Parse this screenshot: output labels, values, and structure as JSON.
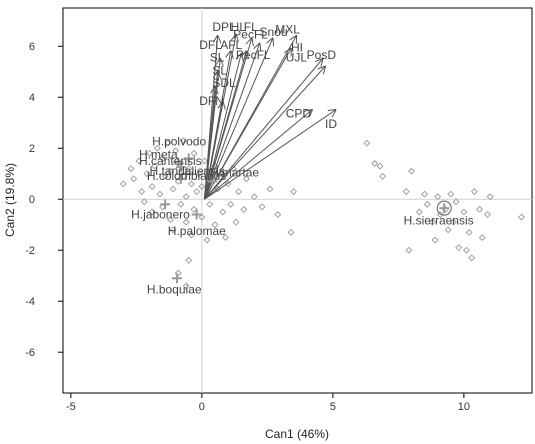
{
  "chart_data": {
    "type": "scatter",
    "xlabel": "Can1 (46%)",
    "ylabel": "Can2 (19.8%)",
    "xlim": [
      -5.3,
      12.6
    ],
    "ylim": [
      -7.6,
      7.5
    ],
    "xticks": [
      -5,
      0,
      5,
      10
    ],
    "yticks": [
      -6,
      -4,
      -2,
      0,
      2,
      4,
      6
    ],
    "grid": false,
    "colors": {
      "points": "#a0a0a0",
      "centroid": "#999999",
      "arrows": "#555555",
      "labels": "#444444",
      "frame": "#000000",
      "zero_lines": "#d0d0d0"
    },
    "groups": [
      {
        "name": "H.polvodo",
        "centroid": [
          -0.5,
          1.6
        ],
        "label_at": [
          -1.9,
          2.1
        ]
      },
      {
        "name": "H.meta",
        "centroid": [
          -0.9,
          1.45
        ],
        "label_at": [
          -2.4,
          1.6
        ]
      },
      {
        "name": "H.cantensis",
        "centroid": [
          -0.8,
          1.25
        ],
        "label_at": [
          -2.4,
          1.35
        ]
      },
      {
        "name": "H.tandaliensis",
        "centroid": [
          -0.6,
          1.0
        ],
        "label_at": [
          -2.0,
          0.95
        ]
      },
      {
        "name": "H.colombianus",
        "centroid": [
          -0.8,
          0.8
        ],
        "label_at": [
          -2.1,
          0.75
        ]
      },
      {
        "name": "H.martae",
        "centroid": [
          0.4,
          0.7
        ],
        "label_at": [
          0.3,
          0.9
        ]
      },
      {
        "name": "H.jabonero",
        "centroid": [
          -1.4,
          -0.2
        ],
        "label_at": [
          -2.7,
          -0.75
        ]
      },
      {
        "name": "H.palomae",
        "centroid": [
          -0.2,
          -0.6
        ],
        "label_at": [
          -1.3,
          -1.4
        ]
      },
      {
        "name": "H.boquiae",
        "centroid": [
          -0.95,
          -3.1
        ],
        "label_at": [
          -2.1,
          -3.7
        ]
      },
      {
        "name": "H.sierraensis",
        "centroid": [
          9.25,
          -0.35
        ],
        "label_at": [
          7.7,
          -1.0
        ]
      }
    ],
    "points": [
      [
        -3.0,
        0.6
      ],
      [
        -2.7,
        1.2
      ],
      [
        -2.6,
        0.8
      ],
      [
        -2.4,
        1.5
      ],
      [
        -2.3,
        0.3
      ],
      [
        -2.1,
        1.0
      ],
      [
        -2.0,
        1.8
      ],
      [
        -1.9,
        0.5
      ],
      [
        -1.8,
        1.3
      ],
      [
        -1.7,
        2.0
      ],
      [
        -1.6,
        0.2
      ],
      [
        -1.5,
        1.6
      ],
      [
        -1.4,
        0.9
      ],
      [
        -1.3,
        2.2
      ],
      [
        -1.2,
        1.1
      ],
      [
        -1.1,
        0.4
      ],
      [
        -1.0,
        1.9
      ],
      [
        -0.9,
        0.7
      ],
      [
        -0.8,
        1.4
      ],
      [
        -0.7,
        2.3
      ],
      [
        -0.6,
        0.1
      ],
      [
        -0.5,
        1.2
      ],
      [
        -0.4,
        0.6
      ],
      [
        -0.3,
        1.8
      ],
      [
        -0.2,
        0.3
      ],
      [
        -0.1,
        1.0
      ],
      [
        0.0,
        0.5
      ],
      [
        0.1,
        1.5
      ],
      [
        0.2,
        0.2
      ],
      [
        0.3,
        0.9
      ],
      [
        0.5,
        1.3
      ],
      [
        0.6,
        0.4
      ],
      [
        0.8,
        1.0
      ],
      [
        1.0,
        0.6
      ],
      [
        1.2,
        1.2
      ],
      [
        1.4,
        0.3
      ],
      [
        1.7,
        0.8
      ],
      [
        -2.2,
        -0.1
      ],
      [
        -1.9,
        -0.5
      ],
      [
        -1.5,
        -0.3
      ],
      [
        -1.2,
        -0.8
      ],
      [
        -0.8,
        -0.2
      ],
      [
        -0.6,
        -0.9
      ],
      [
        -0.3,
        -0.4
      ],
      [
        0.0,
        -0.7
      ],
      [
        0.3,
        -0.2
      ],
      [
        0.5,
        -1.0
      ],
      [
        0.8,
        -0.5
      ],
      [
        1.1,
        -0.2
      ],
      [
        1.3,
        -0.9
      ],
      [
        1.6,
        -0.4
      ],
      [
        2.0,
        0.1
      ],
      [
        2.3,
        -0.3
      ],
      [
        2.6,
        0.4
      ],
      [
        2.9,
        -0.6
      ],
      [
        3.5,
        0.3
      ],
      [
        3.4,
        -1.3
      ],
      [
        -0.4,
        -1.4
      ],
      [
        0.2,
        -1.6
      ],
      [
        0.9,
        -1.5
      ],
      [
        -1.1,
        -1.2
      ],
      [
        -0.5,
        -2.4
      ],
      [
        -0.9,
        -2.9
      ],
      [
        -0.6,
        -3.4
      ],
      [
        6.3,
        2.2
      ],
      [
        6.6,
        1.4
      ],
      [
        6.8,
        1.3
      ],
      [
        6.9,
        0.9
      ],
      [
        8.0,
        1.1
      ],
      [
        7.8,
        0.3
      ],
      [
        8.3,
        -0.5
      ],
      [
        8.5,
        0.2
      ],
      [
        8.6,
        -0.2
      ],
      [
        8.8,
        -0.9
      ],
      [
        9.0,
        0.1
      ],
      [
        9.1,
        -0.6
      ],
      [
        9.3,
        -0.4
      ],
      [
        9.4,
        -1.2
      ],
      [
        9.5,
        0.2
      ],
      [
        9.6,
        -0.9
      ],
      [
        9.7,
        -0.1
      ],
      [
        9.8,
        -1.9
      ],
      [
        10.0,
        -0.5
      ],
      [
        10.1,
        -2.0
      ],
      [
        10.2,
        -1.3
      ],
      [
        10.4,
        0.3
      ],
      [
        10.6,
        -0.4
      ],
      [
        10.7,
        -1.5
      ],
      [
        10.9,
        -0.6
      ],
      [
        11.0,
        0.1
      ],
      [
        12.2,
        -0.7
      ],
      [
        7.9,
        -2.0
      ],
      [
        8.9,
        -1.6
      ],
      [
        10.3,
        -2.3
      ]
    ],
    "origin": [
      0.1,
      0.0
    ],
    "vectors": [
      {
        "name": "DPL",
        "to": [
          0.6,
          6.4
        ],
        "label_at": [
          0.4,
          6.6
        ]
      },
      {
        "name": "HL",
        "to": [
          1.3,
          6.45
        ],
        "label_at": [
          1.1,
          6.6
        ]
      },
      {
        "name": "FL",
        "to": [
          1.9,
          6.3
        ],
        "label_at": [
          1.6,
          6.6
        ]
      },
      {
        "name": "PecFL",
        "to": [
          2.2,
          6.1
        ],
        "label_at": [
          1.2,
          6.3
        ]
      },
      {
        "name": "Snou",
        "to": [
          2.7,
          6.3
        ],
        "label_at": [
          2.2,
          6.4
        ]
      },
      {
        "name": "MXL",
        "to": [
          3.6,
          6.4
        ],
        "label_at": [
          2.8,
          6.5
        ]
      },
      {
        "name": "DFL",
        "to": [
          1.1,
          5.8
        ],
        "label_at": [
          -0.1,
          5.9
        ]
      },
      {
        "name": "PecFL",
        "to": [
          1.7,
          5.8
        ],
        "label_at": [
          1.3,
          5.5
        ]
      },
      {
        "name": "AFL",
        "to": [
          1.5,
          5.7
        ],
        "label_at": [
          0.7,
          5.9
        ]
      },
      {
        "name": "SL",
        "to": [
          0.7,
          5.5
        ],
        "label_at": [
          0.3,
          5.4
        ]
      },
      {
        "name": "SL",
        "to": [
          0.6,
          5.0
        ],
        "label_at": [
          0.4,
          4.9
        ]
      },
      {
        "name": "SDL",
        "to": [
          0.5,
          4.4
        ],
        "label_at": [
          0.4,
          4.4
        ]
      },
      {
        "name": "DFN",
        "to": [
          0.8,
          3.8
        ],
        "label_at": [
          -0.1,
          3.7
        ]
      },
      {
        "name": "HI",
        "to": [
          3.4,
          5.9
        ],
        "label_at": [
          3.4,
          5.8
        ]
      },
      {
        "name": "UJL",
        "to": [
          4.6,
          5.5
        ],
        "label_at": [
          3.2,
          5.4
        ]
      },
      {
        "name": "PosD",
        "to": [
          4.7,
          5.2
        ],
        "label_at": [
          4.0,
          5.5
        ]
      },
      {
        "name": "CPD",
        "to": [
          4.2,
          3.5
        ],
        "label_at": [
          3.2,
          3.2
        ]
      },
      {
        "name": "ID",
        "to": [
          5.1,
          3.5
        ],
        "label_at": [
          4.7,
          2.8
        ]
      }
    ]
  }
}
